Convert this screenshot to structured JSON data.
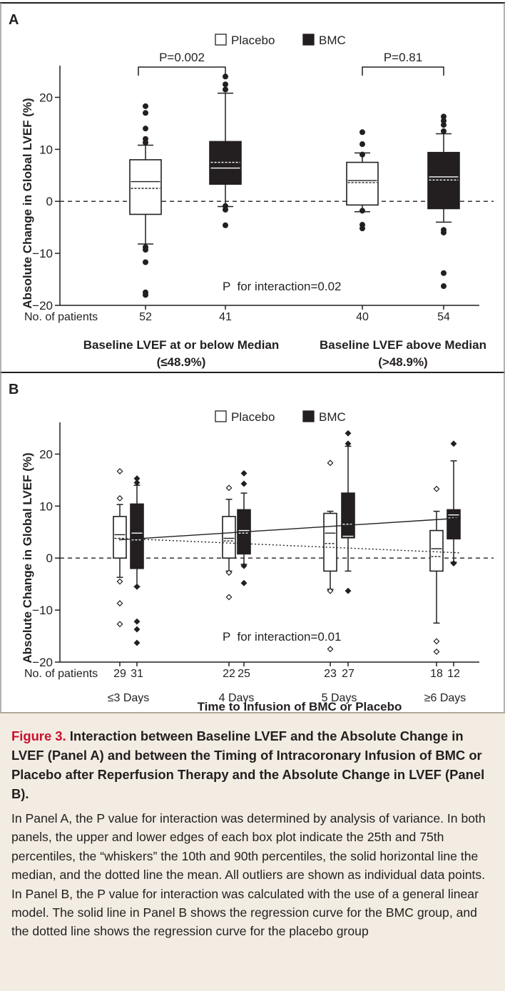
{
  "chart_data": [
    {
      "type": "box",
      "panel_label": "A",
      "ylabel": "Absolute Change in Global LVEF (%)",
      "ylim": [
        -20,
        25
      ],
      "yticks": [
        -20,
        -10,
        0,
        10,
        20
      ],
      "reference_line": 0,
      "legend": [
        {
          "name": "Placebo",
          "color": "#ffffff"
        },
        {
          "name": "BMC",
          "color": "#231f20"
        }
      ],
      "legend_placement": "top-center",
      "counts_label": "No. of patients",
      "groups": [
        {
          "label": "Baseline LVEF at or below Median",
          "sublabel": "(≤48.9%)",
          "p_value": "P=0.002",
          "boxes": [
            {
              "series": "Placebo",
              "n": "52",
              "q1": -2.5,
              "q3": 8.0,
              "median": 3.8,
              "mean": 2.5,
              "whisker_low": -8.2,
              "whisker_high": 10.8,
              "outliers": [
                18.3,
                17.0,
                14.0,
                12.0,
                11.3,
                -8.8,
                -9.3,
                -11.7,
                -17.5,
                -18.0
              ]
            },
            {
              "series": "BMC",
              "n": "41",
              "q1": 3.3,
              "q3": 11.5,
              "median": 6.4,
              "mean": 7.5,
              "whisker_low": -1.0,
              "whisker_high": 20.8,
              "outliers": [
                24.0,
                22.5,
                21.5,
                -0.9,
                -1.6,
                -4.6
              ]
            }
          ]
        },
        {
          "label": "Baseline LVEF above Median",
          "sublabel": "(>48.9%)",
          "p_value": "P=0.81",
          "boxes": [
            {
              "series": "Placebo",
              "n": "40",
              "q1": -0.7,
              "q3": 7.5,
              "median": 4.0,
              "mean": 3.6,
              "whisker_low": -2.0,
              "whisker_high": 9.3,
              "outliers": [
                13.3,
                11.0,
                9.0,
                -1.8,
                -4.5,
                -5.2
              ]
            },
            {
              "series": "BMC",
              "n": "54",
              "q1": -1.4,
              "q3": 9.4,
              "median": 4.7,
              "mean": 4.1,
              "whisker_low": -4.0,
              "whisker_high": 13.0,
              "outliers": [
                16.3,
                15.5,
                14.7,
                13.5,
                -5.5,
                -6.0,
                -13.8,
                -16.3
              ]
            }
          ]
        }
      ],
      "annotation": "P  for interaction=0.02"
    },
    {
      "type": "box",
      "panel_label": "B",
      "ylabel": "Absolute Change in Global LVEF (%)",
      "ylim": [
        -20,
        25
      ],
      "yticks": [
        -20,
        -10,
        0,
        10,
        20
      ],
      "reference_line": 0,
      "legend": [
        {
          "name": "Placebo",
          "color": "#ffffff"
        },
        {
          "name": "BMC",
          "color": "#231f20"
        }
      ],
      "legend_placement": "top-center",
      "counts_label": "No. of patients",
      "xlabel": "Time to Infusion of BMC or Placebo",
      "groups": [
        {
          "label": "≤3 Days",
          "boxes": [
            {
              "series": "Placebo",
              "n": "29",
              "q1": 0.0,
              "q3": 8.0,
              "median": 4.5,
              "mean": 3.8,
              "whisker_low": -3.7,
              "whisker_high": 10.3,
              "outliers": [
                16.7,
                11.5,
                -4.5,
                -8.7,
                -12.7
              ]
            },
            {
              "series": "BMC",
              "n": "31",
              "q1": -2.0,
              "q3": 10.4,
              "median": 4.8,
              "mean": 3.5,
              "whisker_low": -5.5,
              "whisker_high": 14.0,
              "outliers": [
                15.3,
                14.5,
                -5.5,
                -12.2,
                -13.7,
                -16.3
              ]
            }
          ]
        },
        {
          "label": "4 Days",
          "boxes": [
            {
              "series": "Placebo",
              "n": "22",
              "q1": 0.0,
              "q3": 8.0,
              "median": 3.8,
              "mean": 3.3,
              "whisker_low": -2.5,
              "whisker_high": 11.3,
              "outliers": [
                13.5,
                -2.8,
                -7.5
              ]
            },
            {
              "series": "BMC",
              "n": "25",
              "q1": 0.8,
              "q3": 9.3,
              "median": 5.3,
              "mean": 4.8,
              "whisker_low": -1.2,
              "whisker_high": 12.5,
              "outliers": [
                16.3,
                14.3,
                -1.5,
                -4.8
              ]
            }
          ]
        },
        {
          "label": "5 Days",
          "boxes": [
            {
              "series": "Placebo",
              "n": "23",
              "q1": -2.5,
              "q3": 8.6,
              "median": 4.8,
              "mean": 2.8,
              "whisker_low": -6.0,
              "whisker_high": 9.0,
              "outliers": [
                18.3,
                -6.3,
                -17.5
              ]
            },
            {
              "series": "BMC",
              "n": "27",
              "q1": 3.9,
              "q3": 12.5,
              "median": 4.2,
              "mean": 6.5,
              "whisker_low": -2.5,
              "whisker_high": 21.5,
              "outliers": [
                24.0,
                22.0,
                -6.3
              ]
            }
          ]
        },
        {
          "label": "≥6 Days",
          "boxes": [
            {
              "series": "Placebo",
              "n": "18",
              "q1": -2.5,
              "q3": 5.3,
              "median": 1.8,
              "mean": 0.3,
              "whisker_low": -12.5,
              "whisker_high": 9.0,
              "outliers": [
                13.3,
                -16.0,
                -18.0
              ]
            },
            {
              "series": "BMC",
              "n": "12",
              "q1": 3.7,
              "q3": 9.3,
              "median": 8.3,
              "mean": 7.7,
              "whisker_low": -0.8,
              "whisker_high": 18.7,
              "outliers": [
                22.0,
                -1.0
              ]
            }
          ]
        }
      ],
      "regression": [
        {
          "series": "BMC",
          "style": "solid",
          "y_start": 3.5,
          "y_end": 7.7
        },
        {
          "series": "Placebo",
          "style": "dotted",
          "y_start": 3.8,
          "y_end": 1.0
        }
      ],
      "annotation": "P  for interaction=0.01"
    }
  ],
  "caption": {
    "label": "Figure 3.",
    "title": "Interaction between Baseline LVEF and the Absolute Change in LVEF (Panel A) and between the Timing of Intracoronary Infusion of BMC or Placebo after Reperfusion Therapy and the Absolute Change in LVEF (Panel B).",
    "body": "In Panel A, the P value for interaction was determined by analysis of variance. In both panels, the upper and lower edges of each box plot indicate the 25th and 75th percentiles, the “whiskers” the 10th and 90th percentiles, the solid horizontal line the median, and the dotted line the mean. All outliers are shown as individual data points. In Panel B, the P value for interaction was calculated with the use of a general linear model. The solid line in Panel B shows the regression curve for the BMC group, and the dotted line shows the regression curve for the placebo group"
  }
}
